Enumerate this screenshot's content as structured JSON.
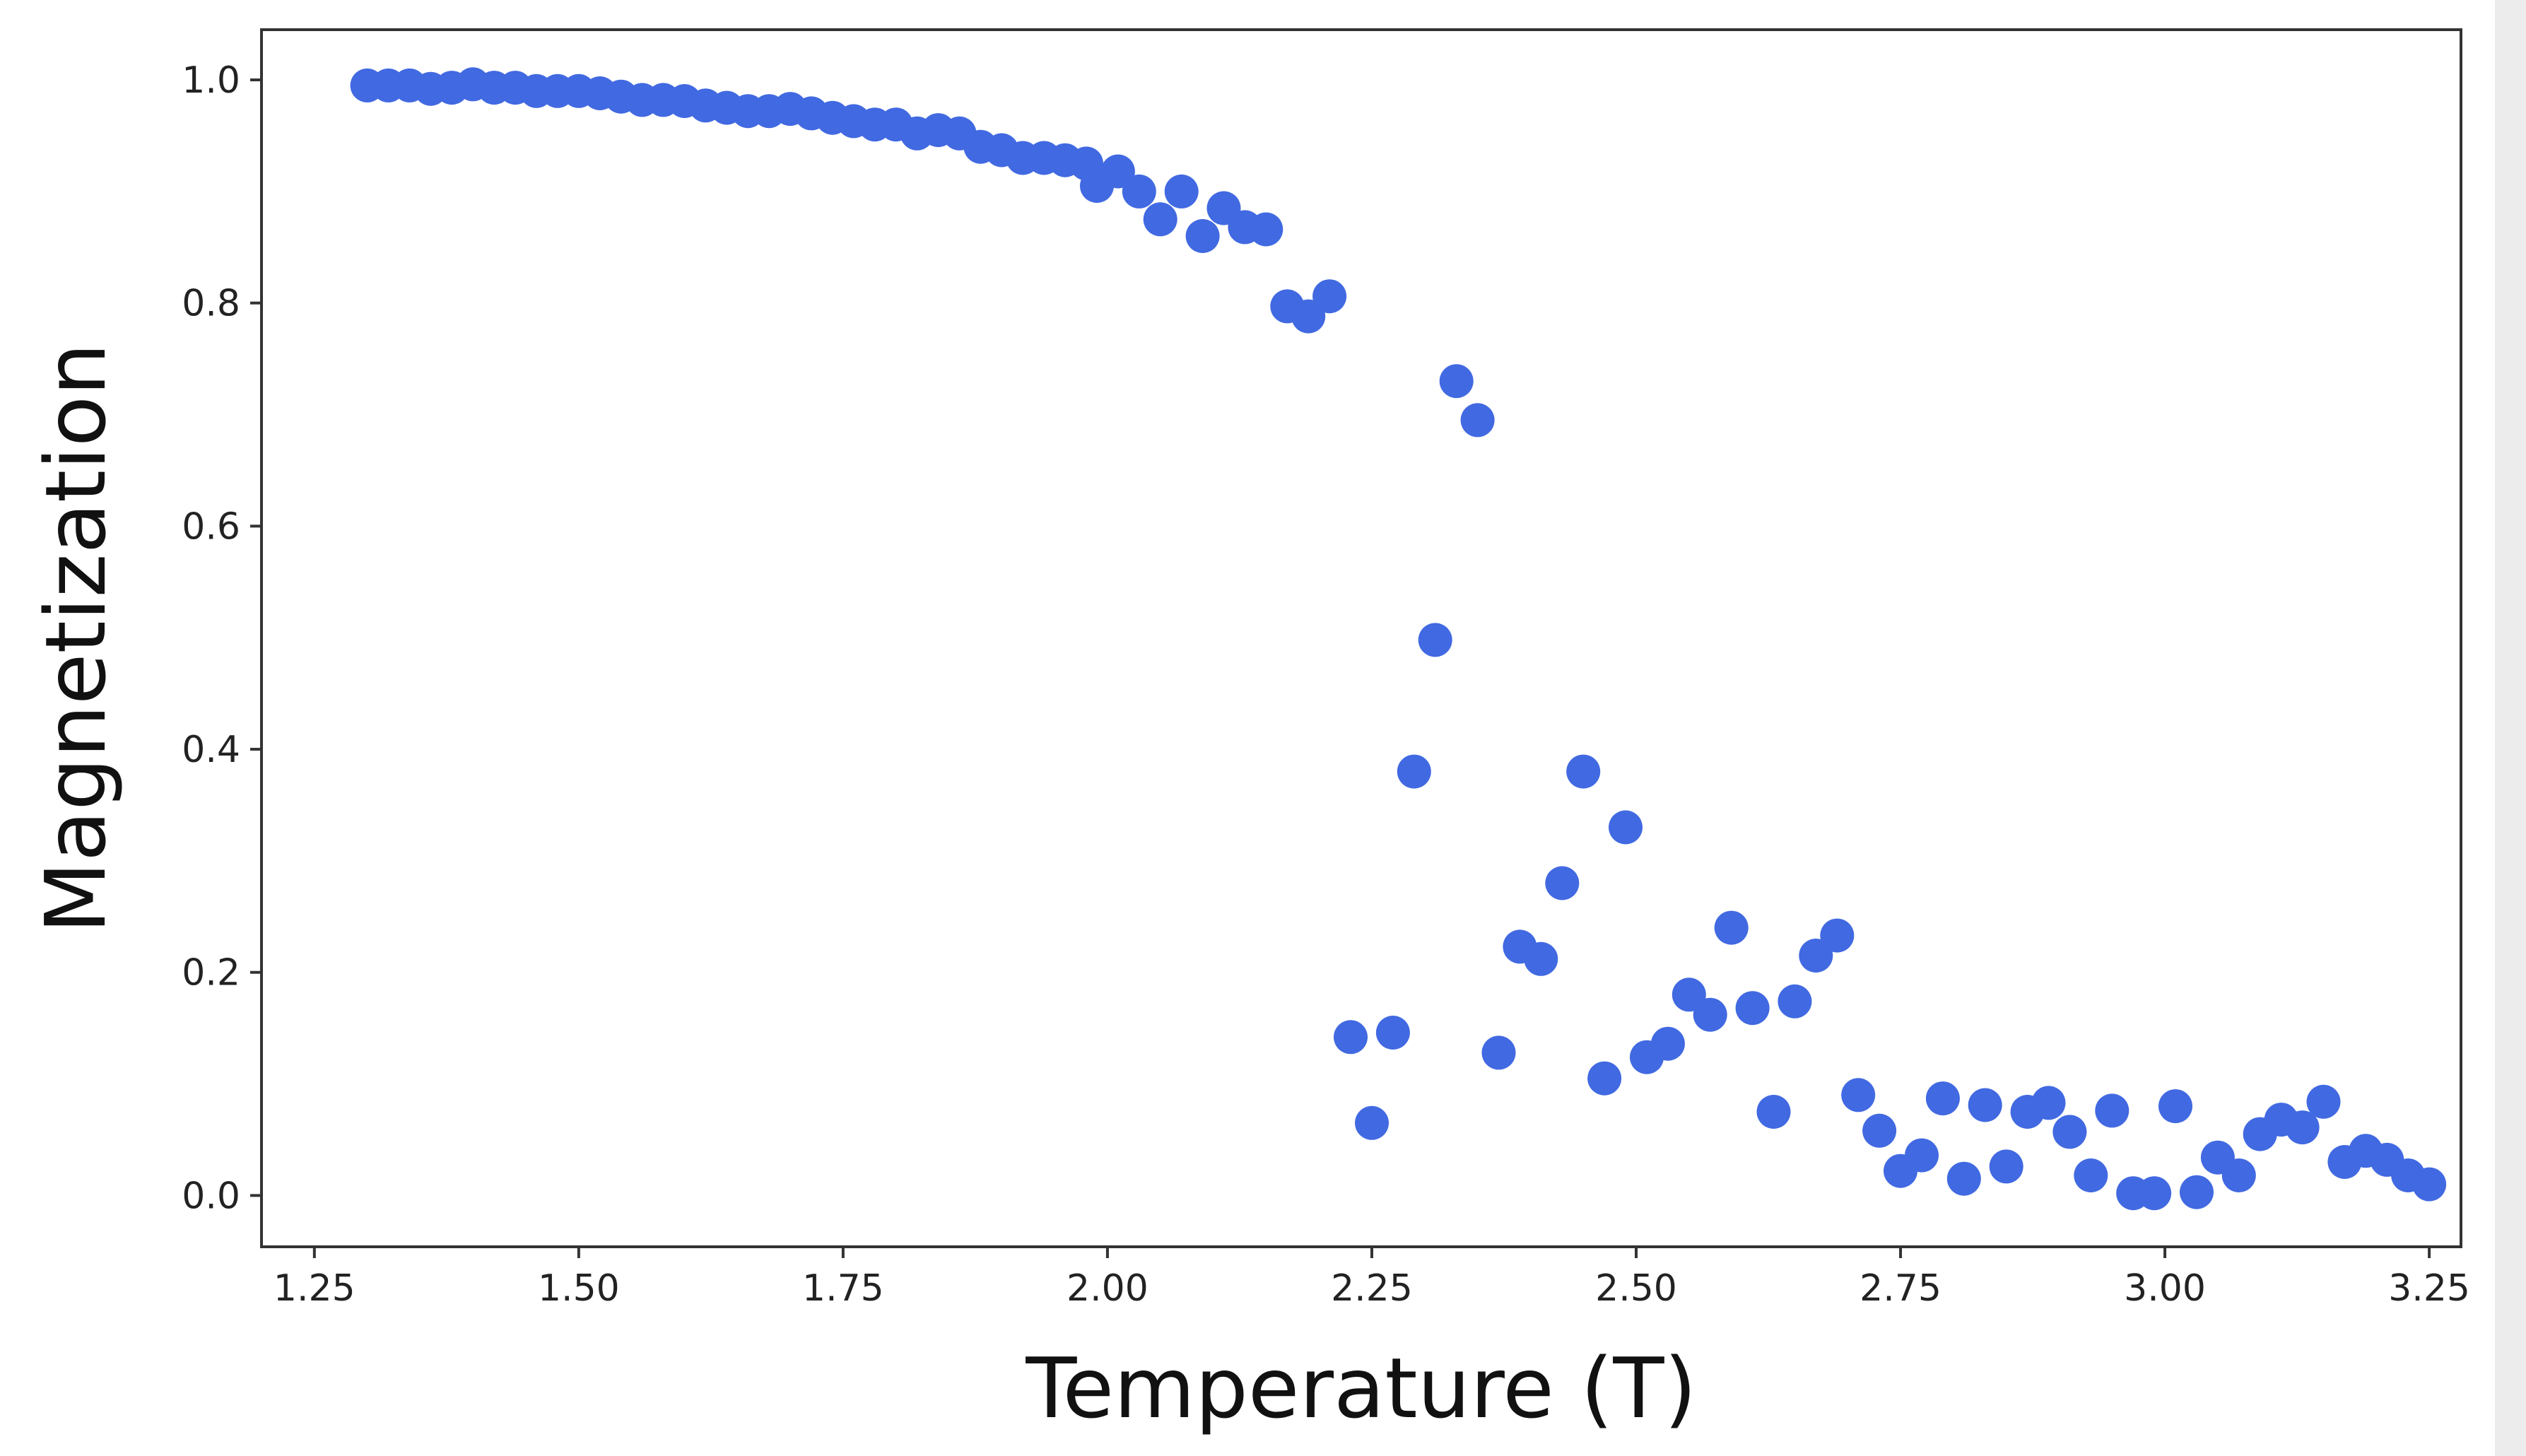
{
  "chart_data": {
    "type": "scatter",
    "title": "",
    "xlabel": "Temperature (T)",
    "ylabel": "Magnetization",
    "xlim": [
      1.2,
      3.28
    ],
    "ylim": [
      -0.046,
      1.045
    ],
    "grid": false,
    "marker_color": "#4169e1",
    "x_ticks": [
      1.25,
      1.5,
      1.75,
      2.0,
      2.25,
      2.5,
      2.75,
      3.0,
      3.25
    ],
    "x_tick_labels": [
      "1.25",
      "1.50",
      "1.75",
      "2.00",
      "2.25",
      "2.50",
      "2.75",
      "3.00",
      "3.25"
    ],
    "y_ticks": [
      0.0,
      0.2,
      0.4,
      0.6,
      0.8,
      1.0
    ],
    "y_tick_labels": [
      "0.0",
      "0.2",
      "0.4",
      "0.6",
      "0.8",
      "1.0"
    ],
    "points": [
      [
        1.3,
        0.995
      ],
      [
        1.32,
        0.995
      ],
      [
        1.34,
        0.995
      ],
      [
        1.36,
        0.992
      ],
      [
        1.38,
        0.993
      ],
      [
        1.4,
        0.996
      ],
      [
        1.42,
        0.993
      ],
      [
        1.44,
        0.993
      ],
      [
        1.46,
        0.99
      ],
      [
        1.48,
        0.99
      ],
      [
        1.5,
        0.99
      ],
      [
        1.52,
        0.988
      ],
      [
        1.54,
        0.985
      ],
      [
        1.56,
        0.982
      ],
      [
        1.58,
        0.982
      ],
      [
        1.6,
        0.981
      ],
      [
        1.62,
        0.977
      ],
      [
        1.64,
        0.975
      ],
      [
        1.66,
        0.972
      ],
      [
        1.68,
        0.972
      ],
      [
        1.7,
        0.974
      ],
      [
        1.72,
        0.97
      ],
      [
        1.74,
        0.966
      ],
      [
        1.76,
        0.963
      ],
      [
        1.78,
        0.96
      ],
      [
        1.8,
        0.96
      ],
      [
        1.82,
        0.952
      ],
      [
        1.84,
        0.955
      ],
      [
        1.86,
        0.952
      ],
      [
        1.88,
        0.94
      ],
      [
        1.9,
        0.937
      ],
      [
        1.92,
        0.93
      ],
      [
        1.94,
        0.93
      ],
      [
        1.96,
        0.928
      ],
      [
        1.98,
        0.925
      ],
      [
        1.99,
        0.905
      ],
      [
        2.01,
        0.918
      ],
      [
        2.03,
        0.9
      ],
      [
        2.05,
        0.875
      ],
      [
        2.07,
        0.9
      ],
      [
        2.09,
        0.86
      ],
      [
        2.11,
        0.885
      ],
      [
        2.13,
        0.868
      ],
      [
        2.15,
        0.866
      ],
      [
        2.17,
        0.797
      ],
      [
        2.19,
        0.788
      ],
      [
        2.21,
        0.806
      ],
      [
        2.23,
        0.142
      ],
      [
        2.25,
        0.065
      ],
      [
        2.27,
        0.146
      ],
      [
        2.29,
        0.38
      ],
      [
        2.31,
        0.498
      ],
      [
        2.33,
        0.73
      ],
      [
        2.35,
        0.695
      ],
      [
        2.37,
        0.128
      ],
      [
        2.39,
        0.223
      ],
      [
        2.41,
        0.212
      ],
      [
        2.43,
        0.28
      ],
      [
        2.45,
        0.38
      ],
      [
        2.47,
        0.105
      ],
      [
        2.49,
        0.33
      ],
      [
        2.51,
        0.124
      ],
      [
        2.53,
        0.136
      ],
      [
        2.55,
        0.18
      ],
      [
        2.57,
        0.162
      ],
      [
        2.59,
        0.24
      ],
      [
        2.61,
        0.168
      ],
      [
        2.63,
        0.075
      ],
      [
        2.65,
        0.174
      ],
      [
        2.67,
        0.215
      ],
      [
        2.69,
        0.233
      ],
      [
        2.71,
        0.09
      ],
      [
        2.73,
        0.058
      ],
      [
        2.75,
        0.022
      ],
      [
        2.77,
        0.036
      ],
      [
        2.79,
        0.087
      ],
      [
        2.81,
        0.015
      ],
      [
        2.83,
        0.081
      ],
      [
        2.85,
        0.026
      ],
      [
        2.87,
        0.075
      ],
      [
        2.89,
        0.083
      ],
      [
        2.91,
        0.057
      ],
      [
        2.93,
        0.018
      ],
      [
        2.95,
        0.076
      ],
      [
        2.97,
        0.002
      ],
      [
        2.99,
        0.002
      ],
      [
        3.01,
        0.08
      ],
      [
        3.03,
        0.003
      ],
      [
        3.05,
        0.034
      ],
      [
        3.07,
        0.018
      ],
      [
        3.09,
        0.055
      ],
      [
        3.11,
        0.068
      ],
      [
        3.13,
        0.061
      ],
      [
        3.15,
        0.084
      ],
      [
        3.17,
        0.03
      ],
      [
        3.19,
        0.04
      ],
      [
        3.21,
        0.032
      ],
      [
        3.23,
        0.018
      ],
      [
        3.25,
        0.01
      ]
    ]
  }
}
